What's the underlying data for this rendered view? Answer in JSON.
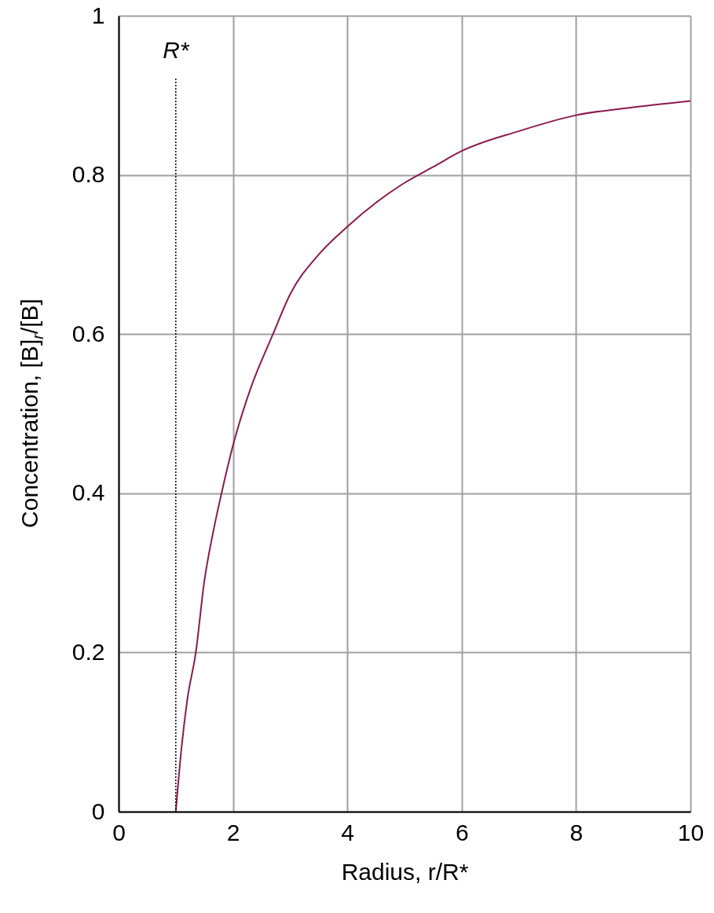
{
  "chart_data": {
    "type": "line",
    "xlabel": "Radius, r/R*",
    "ylabel": "Concentration, [B]$_{r}$/[B]",
    "x": [
      1,
      1.1,
      1.2,
      1.35,
      1.5,
      1.65,
      1.8,
      2,
      2.3,
      2.7,
      3,
      3.5,
      4,
      4.5,
      5,
      5.5,
      6,
      7,
      8,
      9,
      10
    ],
    "series": [
      {
        "color": "#8b1a4f",
        "values": [
          0,
          0.08,
          0.14,
          0.2,
          0.29,
          0.35,
          0.4,
          0.46,
          0.53,
          0.6,
          0.65,
          0.7,
          0.735,
          0.765,
          0.79,
          0.81,
          0.83,
          0.855,
          0.875,
          0.885,
          0.893
        ]
      }
    ],
    "xlim": [
      0,
      10
    ],
    "xticks": [
      0,
      2,
      4,
      6,
      8,
      10
    ],
    "ylim": [
      0,
      1
    ],
    "yticks": [
      0,
      0.2,
      0.4,
      0.6,
      0.8,
      1
    ],
    "grid": true,
    "ref_lines": [
      {
        "axis": "x",
        "value": 1,
        "label": "R*",
        "line_style": "dotted",
        "color": "#000000"
      }
    ]
  }
}
